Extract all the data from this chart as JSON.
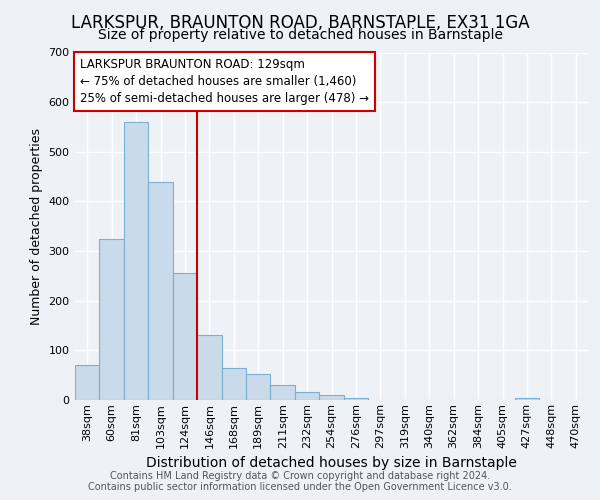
{
  "title": "LARKSPUR, BRAUNTON ROAD, BARNSTAPLE, EX31 1GA",
  "subtitle": "Size of property relative to detached houses in Barnstaple",
  "xlabel": "Distribution of detached houses by size in Barnstaple",
  "ylabel": "Number of detached properties",
  "footer_line1": "Contains HM Land Registry data © Crown copyright and database right 2024.",
  "footer_line2": "Contains public sector information licensed under the Open Government Licence v3.0.",
  "bar_labels": [
    "38sqm",
    "60sqm",
    "81sqm",
    "103sqm",
    "124sqm",
    "146sqm",
    "168sqm",
    "189sqm",
    "211sqm",
    "232sqm",
    "254sqm",
    "276sqm",
    "297sqm",
    "319sqm",
    "340sqm",
    "362sqm",
    "384sqm",
    "405sqm",
    "427sqm",
    "448sqm",
    "470sqm"
  ],
  "bar_values": [
    70,
    325,
    560,
    440,
    255,
    130,
    65,
    52,
    30,
    17,
    10,
    4,
    0,
    0,
    0,
    0,
    0,
    0,
    5,
    0,
    0
  ],
  "bar_color": "#c9daea",
  "bar_edge_color": "#7bafd4",
  "red_line_x": 4.5,
  "red_line_color": "#cc0000",
  "ylim": [
    0,
    700
  ],
  "yticks": [
    0,
    100,
    200,
    300,
    400,
    500,
    600,
    700
  ],
  "annotation_text": "LARKSPUR BRAUNTON ROAD: 129sqm\n← 75% of detached houses are smaller (1,460)\n25% of semi-detached houses are larger (478) →",
  "annotation_box_color": "#ffffff",
  "annotation_box_edge": "#cc0000",
  "background_color": "#eef2f7",
  "grid_color": "#ffffff",
  "title_fontsize": 12,
  "subtitle_fontsize": 10,
  "tick_fontsize": 8,
  "ylabel_fontsize": 9,
  "xlabel_fontsize": 10,
  "annotation_fontsize": 8.5,
  "footer_fontsize": 7
}
